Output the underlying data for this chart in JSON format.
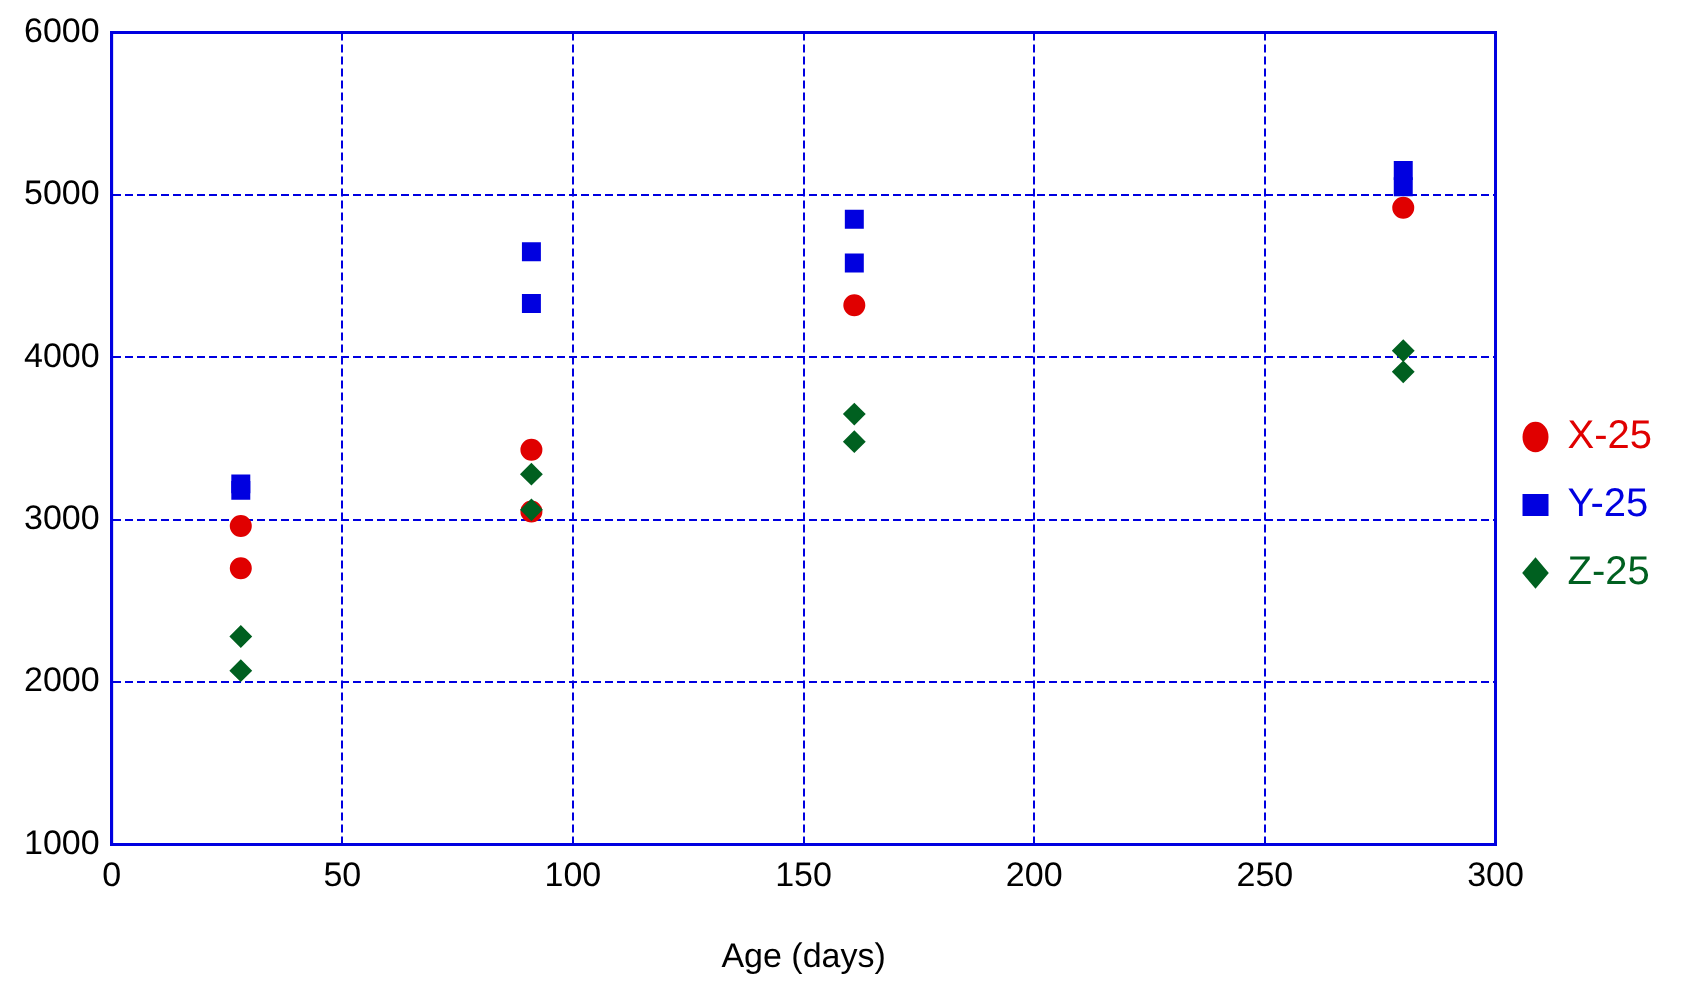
{
  "chart_data": {
    "type": "scatter",
    "xlabel": "Age (days)",
    "xlim": [
      0,
      300
    ],
    "xticks": [
      0,
      50,
      100,
      150,
      200,
      250,
      300
    ],
    "ylim": [
      1000,
      6000
    ],
    "yticks": [
      1000,
      2000,
      3000,
      4000,
      5000,
      6000
    ],
    "grid": true,
    "legend": "right",
    "series": [
      {
        "name": "X-25",
        "color": "#e00000",
        "marker": "circle",
        "x": [
          28,
          28,
          91,
          91,
          161,
          280
        ],
        "values": [
          2960,
          2700,
          3430,
          3050,
          4320,
          4920
        ]
      },
      {
        "name": "Y-25",
        "color": "#0000e0",
        "marker": "square",
        "x": [
          28,
          28,
          91,
          91,
          161,
          161,
          280,
          280
        ],
        "values": [
          3220,
          3180,
          4650,
          4330,
          4850,
          4580,
          5150,
          5050
        ]
      },
      {
        "name": "Z-25",
        "color": "#006020",
        "marker": "diamond",
        "x": [
          28,
          28,
          91,
          91,
          161,
          161,
          280,
          280
        ],
        "values": [
          2280,
          2070,
          3280,
          3060,
          3650,
          3480,
          4040,
          3910
        ]
      }
    ]
  }
}
